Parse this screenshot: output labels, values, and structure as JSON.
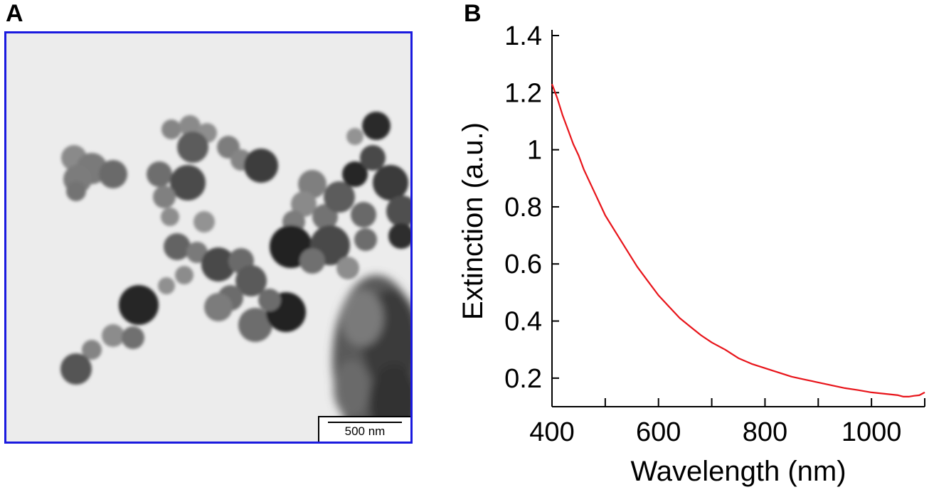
{
  "panels": {
    "a_label": "A",
    "b_label": "B"
  },
  "tem_image": {
    "scale_bar_label": "500 nm",
    "frame_color": "#1a1adf"
  },
  "chart_data": {
    "type": "line",
    "title": "",
    "xlabel": "Wavelength (nm)",
    "ylabel": "Extinction (a.u.)",
    "xlim": [
      400,
      1100
    ],
    "ylim": [
      0.1,
      1.4
    ],
    "xticks": [
      400,
      600,
      800,
      1000
    ],
    "xtick_labels": [
      "400",
      "600",
      "800",
      "1000"
    ],
    "x_minor_ticks": [
      500,
      700,
      900,
      1100
    ],
    "yticks": [
      0.2,
      0.4,
      0.6,
      0.8,
      1.0,
      1.2,
      1.4
    ],
    "ytick_labels": [
      "0.2",
      "0.4",
      "0.6",
      "0.8",
      "1",
      "1.2",
      "1.4"
    ],
    "grid": false,
    "series": [
      {
        "color": "#e8141a",
        "x": [
          400,
          410,
          420,
          430,
          440,
          450,
          460,
          470,
          480,
          490,
          500,
          520,
          540,
          560,
          580,
          600,
          620,
          640,
          660,
          680,
          700,
          725,
          750,
          775,
          800,
          825,
          850,
          875,
          900,
          925,
          950,
          975,
          1000,
          1025,
          1050,
          1060,
          1070,
          1080,
          1090,
          1100
        ],
        "y": [
          1.23,
          1.18,
          1.12,
          1.07,
          1.02,
          0.98,
          0.93,
          0.89,
          0.85,
          0.81,
          0.77,
          0.71,
          0.65,
          0.59,
          0.54,
          0.49,
          0.45,
          0.41,
          0.38,
          0.35,
          0.325,
          0.3,
          0.27,
          0.25,
          0.235,
          0.22,
          0.205,
          0.195,
          0.185,
          0.175,
          0.165,
          0.158,
          0.15,
          0.145,
          0.14,
          0.135,
          0.135,
          0.138,
          0.14,
          0.15
        ]
      }
    ]
  }
}
